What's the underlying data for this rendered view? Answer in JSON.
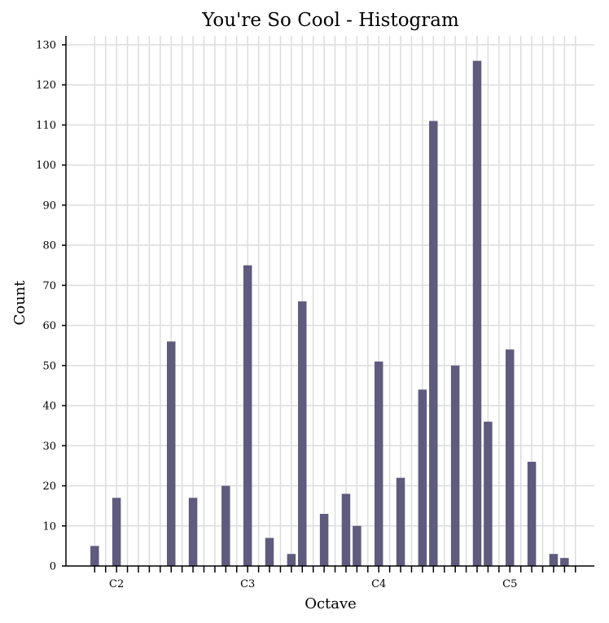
{
  "chart_data": {
    "type": "bar",
    "title": "You're So Cool - Histogram",
    "xlabel": "Octave",
    "ylabel": "Count",
    "ylim": [
      0,
      130
    ],
    "yticks": [
      0,
      10,
      20,
      30,
      40,
      50,
      60,
      70,
      80,
      90,
      100,
      110,
      120,
      130
    ],
    "x_semitone_range": [
      33,
      79
    ],
    "octave_labels": [
      {
        "label": "C2",
        "semitone": 36
      },
      {
        "label": "C3",
        "semitone": 48
      },
      {
        "label": "C4",
        "semitone": 60
      },
      {
        "label": "C5",
        "semitone": 72
      }
    ],
    "bars": [
      {
        "semitone": 34,
        "value": 5
      },
      {
        "semitone": 36,
        "value": 17
      },
      {
        "semitone": 41,
        "value": 56
      },
      {
        "semitone": 43,
        "value": 17
      },
      {
        "semitone": 46,
        "value": 20
      },
      {
        "semitone": 48,
        "value": 75
      },
      {
        "semitone": 50,
        "value": 7
      },
      {
        "semitone": 52,
        "value": 3
      },
      {
        "semitone": 53,
        "value": 66
      },
      {
        "semitone": 55,
        "value": 13
      },
      {
        "semitone": 57,
        "value": 18
      },
      {
        "semitone": 58,
        "value": 10
      },
      {
        "semitone": 60,
        "value": 51
      },
      {
        "semitone": 62,
        "value": 22
      },
      {
        "semitone": 64,
        "value": 44
      },
      {
        "semitone": 65,
        "value": 111
      },
      {
        "semitone": 67,
        "value": 50
      },
      {
        "semitone": 69,
        "value": 126
      },
      {
        "semitone": 70,
        "value": 36
      },
      {
        "semitone": 72,
        "value": 54
      },
      {
        "semitone": 74,
        "value": 26
      },
      {
        "semitone": 76,
        "value": 3
      },
      {
        "semitone": 77,
        "value": 2
      }
    ],
    "bar_color": "#5f5b7e",
    "grid": true
  }
}
